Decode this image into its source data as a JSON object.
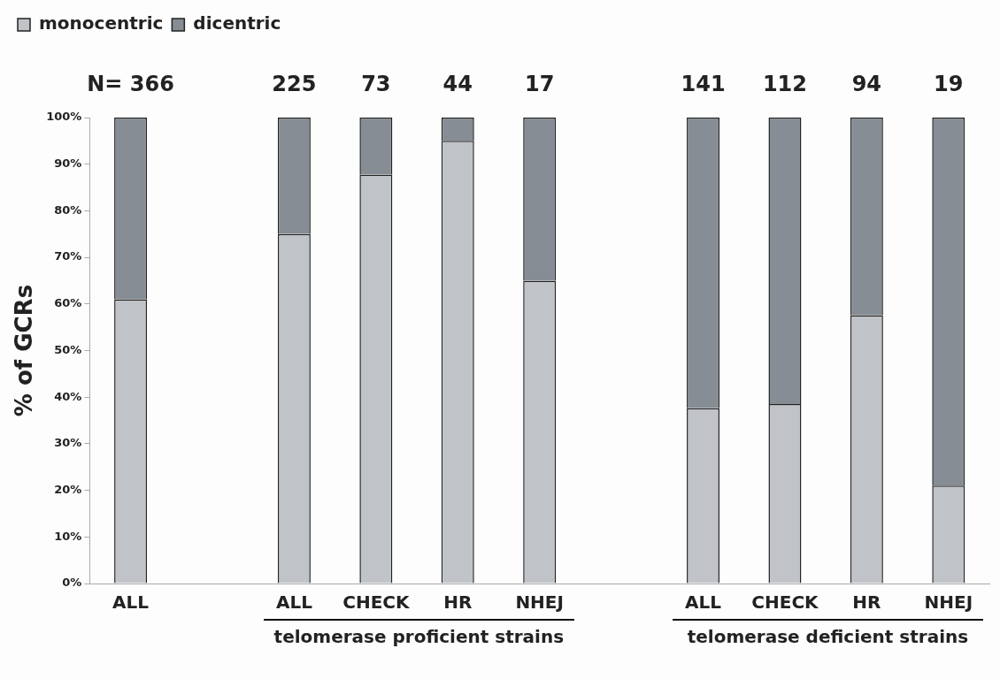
{
  "chart_data": {
    "type": "bar",
    "stacked": true,
    "ylabel": "% of GCRs",
    "categories": [
      "ALL",
      null,
      "ALL",
      "CHECK",
      "HR",
      "NHEJ",
      null,
      "ALL",
      "CHECK",
      "HR",
      "NHEJ"
    ],
    "series": [
      {
        "name": "monocentric",
        "color": "#c0c3c8",
        "values": [
          61,
          null,
          75,
          87.7,
          95,
          65,
          null,
          37.6,
          38.5,
          57.6,
          21
        ]
      },
      {
        "name": "dicentric",
        "color": "#868d94",
        "values": [
          39,
          null,
          25,
          12.3,
          5,
          35,
          null,
          62.4,
          61.5,
          42.4,
          79
        ]
      }
    ],
    "ylim": [
      0,
      100
    ],
    "yticks": [
      {
        "value": 0,
        "label": "0%"
      },
      {
        "value": 10,
        "label": "10%"
      },
      {
        "value": 20,
        "label": "20%"
      },
      {
        "value": 30,
        "label": "30%"
      },
      {
        "value": 40,
        "label": "40%"
      },
      {
        "value": 50,
        "label": "50%"
      },
      {
        "value": 60,
        "label": "60%"
      },
      {
        "value": 70,
        "label": "70%"
      },
      {
        "value": 80,
        "label": "80%"
      },
      {
        "value": 90,
        "label": "90%"
      },
      {
        "value": 100,
        "label": "100%"
      }
    ],
    "annotations": [
      "N= 366",
      "225",
      "73",
      "44",
      "17",
      "141",
      "112",
      "94",
      "19",
      "telomerase proficient strains",
      "telomerase deficient strains"
    ],
    "legend": "top left",
    "grid": false
  }
}
